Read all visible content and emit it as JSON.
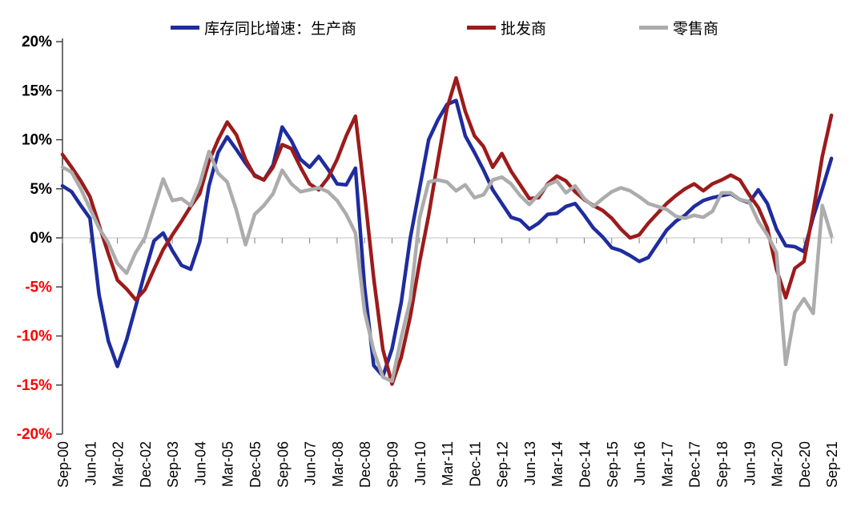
{
  "chart_data": {
    "type": "line",
    "unit": "%",
    "title": "",
    "xlabel": "",
    "ylabel": "",
    "ylim": [
      -20,
      20
    ],
    "y_tick_step": 5,
    "y_tick_labels": [
      "20%",
      "15%",
      "10%",
      "5%",
      "0%",
      "-5%",
      "-10%",
      "-15%",
      "-20%"
    ],
    "y_positive_label_color": "#000000",
    "y_negative_label_color": "#ff0000",
    "grid": "zero-line-only",
    "legend_position": "top",
    "x_labels": [
      "Sep-00",
      "Jun-01",
      "Mar-02",
      "Dec-02",
      "Sep-03",
      "Jun-04",
      "Mar-05",
      "Dec-05",
      "Sep-06",
      "Jun-07",
      "Mar-08",
      "Dec-08",
      "Sep-09",
      "Jun-10",
      "Mar-11",
      "Dec-11",
      "Sep-12",
      "Jun-13",
      "Mar-14",
      "Dec-14",
      "Sep-15",
      "Jun-16",
      "Mar-17",
      "Dec-17",
      "Sep-18",
      "Jun-19",
      "Mar-20",
      "Dec-20",
      "Sep-21"
    ],
    "x_frequency": "quarterly (values) / labels every 9 months",
    "series": [
      {
        "name": "库存同比增速：生产商",
        "color": "#1f2c9e",
        "values": [
          5.3,
          4.7,
          3.3,
          2.0,
          -5.8,
          -10.5,
          -13.1,
          -10.4,
          -7.0,
          -3.5,
          -0.3,
          0.5,
          -1.3,
          -2.8,
          -3.2,
          -0.4,
          5.3,
          8.7,
          10.3,
          9.0,
          7.6,
          6.4,
          5.9,
          7.4,
          11.3,
          9.9,
          8.0,
          7.2,
          8.3,
          7.0,
          5.5,
          5.4,
          7.1,
          -5.0,
          -13.0,
          -14.1,
          -11.3,
          -6.6,
          0.0,
          5.0,
          10.0,
          12.0,
          13.6,
          14.0,
          10.4,
          8.7,
          6.9,
          4.9,
          3.5,
          2.1,
          1.8,
          0.9,
          1.5,
          2.4,
          2.5,
          3.2,
          3.5,
          2.3,
          1.0,
          0.1,
          -1.0,
          -1.3,
          -1.8,
          -2.4,
          -2.0,
          -0.6,
          0.8,
          1.7,
          2.3,
          3.2,
          3.8,
          4.1,
          4.3,
          4.5,
          3.9,
          3.6,
          4.9,
          3.5,
          0.9,
          -0.8,
          -0.9,
          -1.4,
          2.1,
          5.0,
          8.1
        ]
      },
      {
        "name": "批发商",
        "color": "#9c1b1b",
        "values": [
          8.5,
          7.2,
          5.8,
          4.2,
          1.3,
          -1.6,
          -4.3,
          -5.2,
          -6.3,
          -5.3,
          -3.2,
          -1.2,
          0.3,
          1.7,
          3.2,
          4.5,
          7.8,
          10.0,
          11.8,
          10.5,
          8.0,
          6.3,
          5.9,
          7.2,
          9.5,
          9.1,
          7.2,
          5.5,
          4.9,
          6.1,
          8.0,
          10.4,
          12.4,
          4.5,
          -4.1,
          -11.4,
          -14.9,
          -12.2,
          -8.0,
          -2.5,
          2.3,
          7.8,
          13.2,
          16.3,
          12.9,
          10.4,
          9.3,
          7.2,
          8.6,
          6.8,
          5.4,
          4.0,
          4.1,
          5.5,
          6.3,
          5.8,
          4.7,
          3.9,
          3.3,
          2.8,
          2.0,
          0.9,
          0.0,
          0.3,
          1.5,
          2.5,
          3.5,
          4.3,
          5.0,
          5.5,
          4.8,
          5.5,
          5.9,
          6.4,
          5.9,
          4.4,
          3.1,
          1.0,
          -3.2,
          -6.1,
          -3.1,
          -2.4,
          2.7,
          8.3,
          12.5
        ]
      },
      {
        "name": "零售商",
        "color": "#acacac",
        "values": [
          7.2,
          6.7,
          5.0,
          3.0,
          1.0,
          -0.5,
          -2.6,
          -3.6,
          -1.5,
          0.0,
          3.0,
          6.0,
          3.8,
          4.0,
          3.3,
          5.5,
          8.8,
          6.6,
          5.7,
          2.8,
          -0.7,
          2.4,
          3.3,
          4.5,
          6.9,
          5.5,
          4.7,
          4.9,
          5.1,
          4.7,
          3.8,
          2.4,
          0.5,
          -7.5,
          -11.5,
          -14.2,
          -14.6,
          -10.2,
          -6.3,
          2.0,
          5.7,
          5.9,
          5.7,
          4.8,
          5.4,
          4.1,
          4.4,
          5.9,
          6.2,
          5.5,
          4.3,
          3.4,
          4.4,
          5.4,
          5.8,
          4.6,
          5.3,
          4.0,
          3.2,
          4.0,
          4.7,
          5.1,
          4.8,
          4.2,
          3.5,
          3.2,
          2.9,
          2.2,
          2.0,
          2.3,
          2.1,
          2.7,
          4.6,
          4.6,
          3.9,
          3.7,
          1.7,
          0.3,
          -1.5,
          -12.9,
          -7.6,
          -6.2,
          -7.7,
          3.3,
          0.2
        ]
      }
    ],
    "axis_color": "#404040",
    "zero_line_color": "#c0c0c0",
    "tick_color": "#808080"
  }
}
